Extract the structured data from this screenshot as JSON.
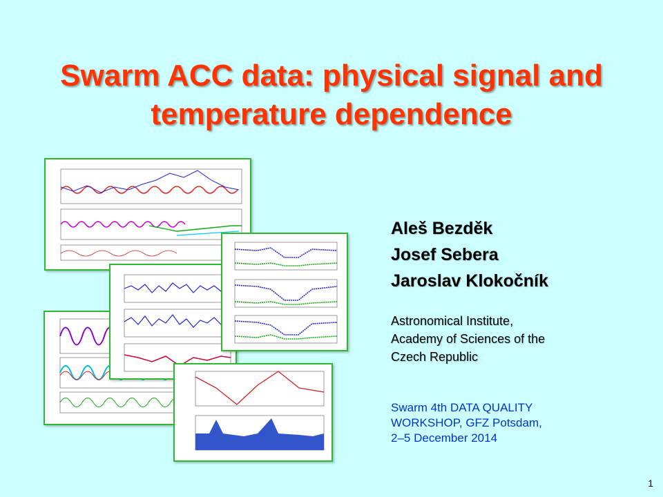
{
  "title_line1": "Swarm ACC data: physical signal and",
  "title_line2": "temperature dependence",
  "authors": [
    "Aleš Bezděk",
    "Josef Sebera",
    "Jaroslav Klokočník"
  ],
  "affiliation": [
    "Astronomical Institute,",
    "Academy of Sciences of the",
    "Czech Republic"
  ],
  "workshop": [
    "Swarm 4th DATA QUALITY",
    "WORKSHOP, GFZ Potsdam,",
    "2–5 December 2014"
  ],
  "page_number": "1",
  "colors": {
    "title": "#ff3300",
    "background": "#ccffff",
    "workshop": "#0033cc",
    "figure_border": "#2eb82e"
  }
}
